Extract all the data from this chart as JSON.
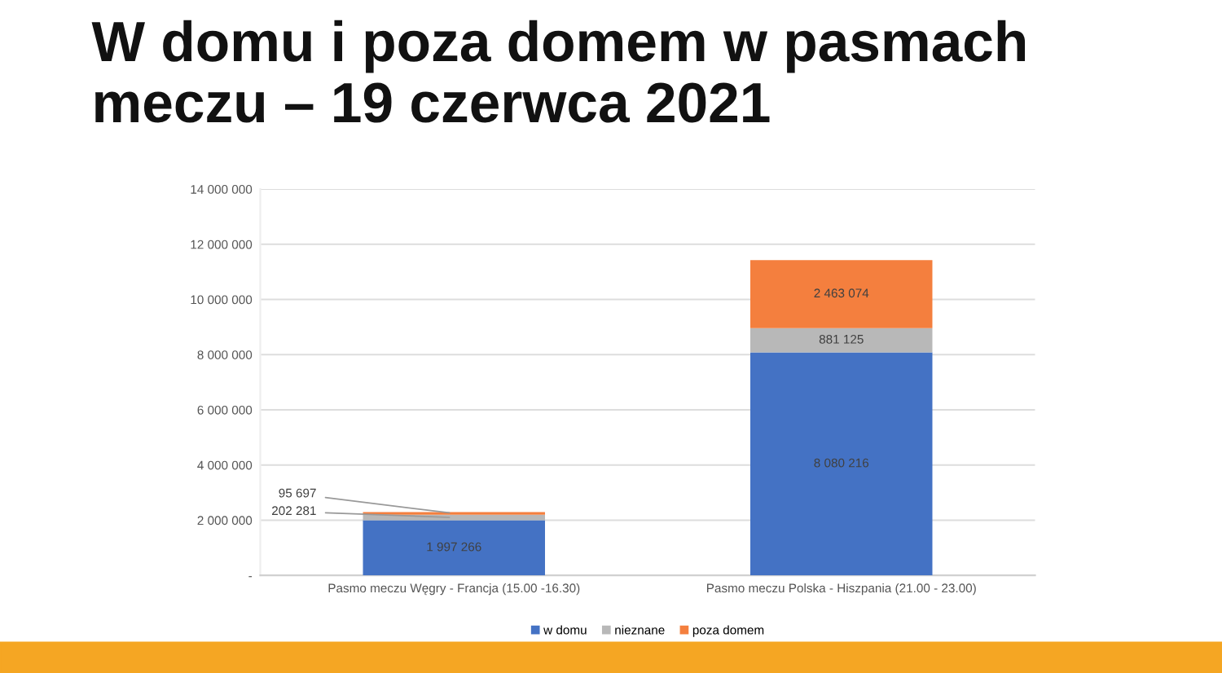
{
  "chart_data": {
    "type": "bar",
    "stacked": true,
    "title": "W domu i poza domem w pasmach\nmeczu – 19 czerwca 2021",
    "categories": [
      "Pasmo meczu Węgry - Francja (15.00 -16.30)",
      "Pasmo meczu Polska - Hiszpania (21.00 - 23.00)"
    ],
    "series": [
      {
        "name": "w domu",
        "color": "#4472c4",
        "values": [
          1997266,
          8080216
        ],
        "value_labels": [
          "1 997 266",
          "8 080 216"
        ]
      },
      {
        "name": "nieznane",
        "color": "#b8b8b8",
        "values": [
          202281,
          881125
        ],
        "value_labels": [
          "202 281",
          "881 125"
        ]
      },
      {
        "name": "poza domem",
        "color": "#f47f3e",
        "values": [
          95697,
          2463074
        ],
        "value_labels": [
          "95 697",
          "2 463 074"
        ]
      }
    ],
    "ylim": [
      0,
      14000000
    ],
    "yticks": [
      {
        "value": 0,
        "label": "-"
      },
      {
        "value": 2000000,
        "label": "2 000 000"
      },
      {
        "value": 4000000,
        "label": "4 000 000"
      },
      {
        "value": 6000000,
        "label": "6 000 000"
      },
      {
        "value": 8000000,
        "label": "8 000 000"
      },
      {
        "value": 10000000,
        "label": "10 000 000"
      },
      {
        "value": 12000000,
        "label": "12 000 000"
      },
      {
        "value": 14000000,
        "label": "14 000 000"
      }
    ],
    "grid": "y",
    "legend": "bottom"
  }
}
